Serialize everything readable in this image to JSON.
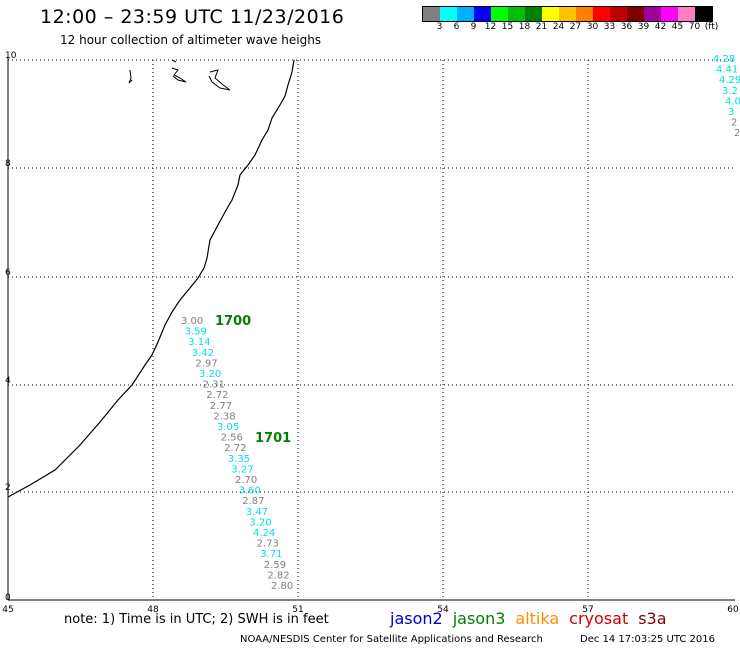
{
  "title": "12:00 – 23:59 UTC 11/23/2016",
  "subtitle": "12 hour collection of altimeter wave heighs",
  "scale": {
    "labels": [
      "3",
      "6",
      "9",
      "12",
      "15",
      "18",
      "21",
      "24",
      "27",
      "30",
      "33",
      "36",
      "39",
      "42",
      "45",
      "70",
      "(ft)"
    ],
    "colors": [
      "#808080",
      "#00ffff",
      "#00b0ff",
      "#0000ff",
      "#00ff00",
      "#00c000",
      "#008000",
      "#ffff00",
      "#ffc000",
      "#ff8000",
      "#ff0000",
      "#c00000",
      "#800000",
      "#a000a0",
      "#ff00ff",
      "#ff80c0",
      "#000000"
    ]
  },
  "axes": {
    "x_ticks": [
      "45",
      "48",
      "51",
      "54",
      "57",
      "60"
    ],
    "y_ticks": [
      "0",
      "2",
      "4",
      "6",
      "8",
      "10"
    ]
  },
  "annotations": {
    "pass1": "1700",
    "pass2": "1701"
  },
  "track_main": [
    {
      "v": "3.00",
      "c": "#808080"
    },
    {
      "v": "3.59",
      "c": "#00e0e0"
    },
    {
      "v": "3.14",
      "c": "#00e0e0"
    },
    {
      "v": "3.42",
      "c": "#00e0e0"
    },
    {
      "v": "2.97",
      "c": "#808080"
    },
    {
      "v": "3.20",
      "c": "#00e0e0"
    },
    {
      "v": "2.31",
      "c": "#808080"
    },
    {
      "v": "2.72",
      "c": "#808080"
    },
    {
      "v": "2.77",
      "c": "#808080"
    },
    {
      "v": "2.38",
      "c": "#808080"
    },
    {
      "v": "3.05",
      "c": "#00e0e0"
    },
    {
      "v": "2.56",
      "c": "#808080"
    },
    {
      "v": "2.72",
      "c": "#808080"
    },
    {
      "v": "3.35",
      "c": "#00e0e0"
    },
    {
      "v": "3.27",
      "c": "#00e0e0"
    },
    {
      "v": "2.70",
      "c": "#808080"
    },
    {
      "v": "3.60",
      "c": "#00e0e0"
    },
    {
      "v": "2.87",
      "c": "#808080"
    },
    {
      "v": "3.47",
      "c": "#00e0e0"
    },
    {
      "v": "3.20",
      "c": "#00e0e0"
    },
    {
      "v": "4.24",
      "c": "#00e0e0"
    },
    {
      "v": "2.73",
      "c": "#808080"
    },
    {
      "v": "3.71",
      "c": "#00e0e0"
    },
    {
      "v": "2.59",
      "c": "#808080"
    },
    {
      "v": "2.82",
      "c": "#808080"
    },
    {
      "v": "2.80",
      "c": "#808080"
    }
  ],
  "track_edge": [
    {
      "v": "4.28",
      "c": "#00e0e0"
    },
    {
      "v": "4.41",
      "c": "#00e0e0"
    },
    {
      "v": "4.29",
      "c": "#00e0e0"
    },
    {
      "v": "3.2",
      "c": "#00e0e0"
    },
    {
      "v": "4.0",
      "c": "#00e0e0"
    },
    {
      "v": "3",
      "c": "#00e0e0"
    },
    {
      "v": "2",
      "c": "#808080"
    },
    {
      "v": "2",
      "c": "#808080"
    }
  ],
  "note": "note: 1) Time is in UTC; 2) SWH is in feet",
  "satellites": [
    {
      "name": "jason2",
      "color": "#0000cc"
    },
    {
      "name": "jason3",
      "color": "#008000"
    },
    {
      "name": "altika",
      "color": "#ff8c00"
    },
    {
      "name": "cryosat",
      "color": "#cc0000"
    },
    {
      "name": "s3a",
      "color": "#800000"
    }
  ],
  "footer": "NOAA/NESDIS Center for Satellite Applications and Research",
  "footer_date": "Dec 14 17:03:25 UTC 2016"
}
